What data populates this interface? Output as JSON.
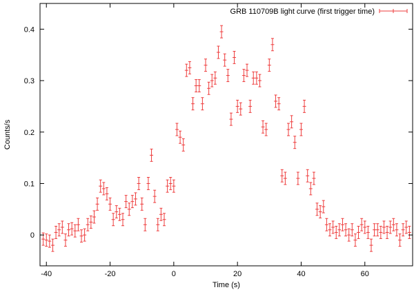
{
  "chart_data": {
    "type": "scatter",
    "title": "",
    "xlabel": "Time (s)",
    "ylabel": "Counts/s",
    "xlim": [
      -42,
      75
    ],
    "ylim": [
      -0.06,
      0.45
    ],
    "x_ticks": [
      -40,
      -20,
      0,
      20,
      40,
      60
    ],
    "y_ticks": [
      0,
      0.1,
      0.2,
      0.3,
      0.4
    ],
    "x_tick_labels": [
      "-40",
      "-20",
      "0",
      "20",
      "40",
      "60"
    ],
    "y_tick_labels": [
      "0",
      "0.1",
      "0.2",
      "0.3",
      "0.4"
    ],
    "legend_position": "top-right",
    "grid": false,
    "series": [
      {
        "name": "GRB 110709B light curve (first trigger time)",
        "color": "#ee3b3b",
        "error_bar": 0.012,
        "points": [
          [
            -41,
            -0.008
          ],
          [
            -40,
            -0.01
          ],
          [
            -39,
            -0.012
          ],
          [
            -38,
            -0.02
          ],
          [
            -37,
            0.005
          ],
          [
            -36,
            0.01
          ],
          [
            -35,
            0.015
          ],
          [
            -34,
            -0.01
          ],
          [
            -33,
            0.01
          ],
          [
            -32,
            0.012
          ],
          [
            -31,
            0.008
          ],
          [
            -30,
            0.02
          ],
          [
            -29,
            -0.002
          ],
          [
            -28,
            0.0
          ],
          [
            -27,
            0.02
          ],
          [
            -26,
            0.025
          ],
          [
            -25,
            0.035
          ],
          [
            -24,
            0.06
          ],
          [
            -23,
            0.095
          ],
          [
            -22,
            0.09
          ],
          [
            -21,
            0.08
          ],
          [
            -20,
            0.06
          ],
          [
            -19,
            0.03
          ],
          [
            -18,
            0.045
          ],
          [
            -17,
            0.04
          ],
          [
            -16,
            0.03
          ],
          [
            -15,
            0.065
          ],
          [
            -14,
            0.05
          ],
          [
            -13,
            0.065
          ],
          [
            -12,
            0.07
          ],
          [
            -11,
            0.1
          ],
          [
            -10,
            0.06
          ],
          [
            -9,
            0.02
          ],
          [
            -8,
            0.1
          ],
          [
            -7,
            0.155
          ],
          [
            -6,
            0.075
          ],
          [
            -5,
            0.02
          ],
          [
            -4,
            0.04
          ],
          [
            -3,
            0.03
          ],
          [
            -2,
            0.095
          ],
          [
            -1,
            0.1
          ],
          [
            0,
            0.095
          ],
          [
            1,
            0.205
          ],
          [
            2,
            0.19
          ],
          [
            3,
            0.175
          ],
          [
            4,
            0.32
          ],
          [
            5,
            0.325
          ],
          [
            6,
            0.255
          ],
          [
            7,
            0.29
          ],
          [
            8,
            0.29
          ],
          [
            9,
            0.255
          ],
          [
            10,
            0.33
          ],
          [
            11,
            0.285
          ],
          [
            12,
            0.3
          ],
          [
            13,
            0.305
          ],
          [
            14,
            0.355
          ],
          [
            15,
            0.395
          ],
          [
            16,
            0.34
          ],
          [
            17,
            0.31
          ],
          [
            18,
            0.225
          ],
          [
            19,
            0.345
          ],
          [
            20,
            0.25
          ],
          [
            21,
            0.245
          ],
          [
            22,
            0.31
          ],
          [
            23,
            0.32
          ],
          [
            24,
            0.25
          ],
          [
            25,
            0.305
          ],
          [
            26,
            0.305
          ],
          [
            27,
            0.3
          ],
          [
            28,
            0.21
          ],
          [
            29,
            0.205
          ],
          [
            30,
            0.33
          ],
          [
            31,
            0.37
          ],
          [
            32,
            0.26
          ],
          [
            33,
            0.255
          ],
          [
            34,
            0.115
          ],
          [
            35,
            0.11
          ],
          [
            36,
            0.205
          ],
          [
            37,
            0.22
          ],
          [
            38,
            0.18
          ],
          [
            39,
            0.11
          ],
          [
            40,
            0.205
          ],
          [
            41,
            0.25
          ],
          [
            42,
            0.115
          ],
          [
            43,
            0.09
          ],
          [
            44,
            0.11
          ],
          [
            45,
            0.05
          ],
          [
            46,
            0.045
          ],
          [
            47,
            0.055
          ],
          [
            48,
            0.02
          ],
          [
            49,
            0.01
          ],
          [
            50,
            0.015
          ],
          [
            51,
            0.005
          ],
          [
            52,
            0.01
          ],
          [
            53,
            0.02
          ],
          [
            54,
            0.01
          ],
          [
            55,
            0.0
          ],
          [
            56,
            0.01
          ],
          [
            57,
            -0.01
          ],
          [
            58,
            0.005
          ],
          [
            59,
            0.02
          ],
          [
            60,
            0.015
          ],
          [
            61,
            0.005
          ],
          [
            62,
            -0.02
          ],
          [
            63,
            0.01
          ],
          [
            64,
            0.01
          ],
          [
            65,
            0.005
          ],
          [
            66,
            0.015
          ],
          [
            67,
            0.005
          ],
          [
            68,
            0.015
          ],
          [
            69,
            0.02
          ],
          [
            70,
            0.01
          ],
          [
            71,
            -0.01
          ],
          [
            72,
            0.01
          ],
          [
            73,
            0.015
          ],
          [
            74,
            0.005
          ]
        ]
      }
    ]
  }
}
